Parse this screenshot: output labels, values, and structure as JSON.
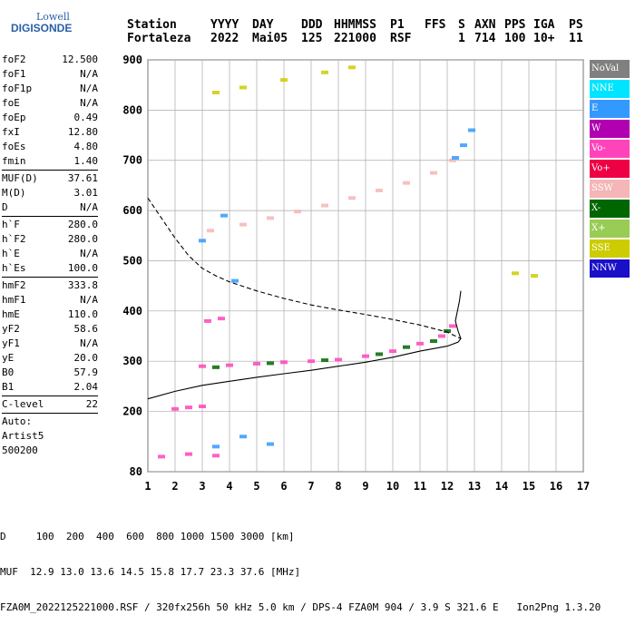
{
  "logo": {
    "line1": "Lowell",
    "line2": "DIGISONDE"
  },
  "header": {
    "labels": [
      "Station",
      "YYYY",
      "DAY",
      "DDD",
      "HHMMSS",
      "P1",
      "FFS",
      "S",
      "AXN",
      "PPS",
      "IGA",
      "PS"
    ],
    "values": [
      "Fortaleza",
      "2022",
      "Mai05",
      "125",
      "221000",
      "RSF",
      "",
      "1",
      "714",
      "100",
      "10+",
      "11"
    ]
  },
  "params": {
    "group1": [
      {
        "k": "foF2",
        "v": "12.500"
      },
      {
        "k": "foF1",
        "v": "N/A"
      },
      {
        "k": "foF1p",
        "v": "N/A"
      },
      {
        "k": "foE",
        "v": "N/A"
      },
      {
        "k": "foEp",
        "v": "0.49"
      },
      {
        "k": "fxI",
        "v": "12.80"
      },
      {
        "k": "foEs",
        "v": "4.80"
      },
      {
        "k": "fmin",
        "v": "1.40"
      }
    ],
    "group2": [
      {
        "k": "MUF(D)",
        "v": "37.61"
      },
      {
        "k": "M(D)",
        "v": "3.01"
      },
      {
        "k": "D",
        "v": "N/A"
      }
    ],
    "group3": [
      {
        "k": "h`F",
        "v": "280.0"
      },
      {
        "k": "h`F2",
        "v": "280.0"
      },
      {
        "k": "h`E",
        "v": "N/A"
      },
      {
        "k": "h`Es",
        "v": "100.0"
      }
    ],
    "group4": [
      {
        "k": "hmF2",
        "v": "333.8"
      },
      {
        "k": "hmF1",
        "v": "N/A"
      },
      {
        "k": "hmE",
        "v": "110.0"
      },
      {
        "k": "yF2",
        "v": "58.6"
      },
      {
        "k": "yF1",
        "v": "N/A"
      },
      {
        "k": "yE",
        "v": "20.0"
      },
      {
        "k": "B0",
        "v": "57.9"
      },
      {
        "k": "B1",
        "v": "2.04"
      }
    ],
    "group5": [
      {
        "k": "C-level",
        "v": "22"
      }
    ],
    "auto": [
      "Auto:",
      "Artist5",
      "500200"
    ]
  },
  "legend": [
    {
      "label": "NoVal",
      "color": "#808080"
    },
    {
      "label": "NNE",
      "color": "#00e5ff"
    },
    {
      "label": "E",
      "color": "#3399ff"
    },
    {
      "label": "W",
      "color": "#b000b0"
    },
    {
      "label": "Vo-",
      "color": "#ff44bb"
    },
    {
      "label": "Vo+",
      "color": "#ee0044"
    },
    {
      "label": "SSW",
      "color": "#f4b6b6"
    },
    {
      "label": "X-",
      "color": "#006600"
    },
    {
      "label": "X+",
      "color": "#99cc55"
    },
    {
      "label": "SSE",
      "color": "#cccc00"
    },
    {
      "label": "NNW",
      "color": "#1a10c8"
    }
  ],
  "footer": {
    "line1": "D     100  200  400  600  800 1000 1500 3000 [km]",
    "line2": "MUF  12.9 13.0 13.6 14.5 15.8 17.7 23.3 37.6 [MHz]",
    "line3": "FZA0M_2022125221000.RSF / 320fx256h 50 kHz 5.0 km / DPS-4 FZA0M 904 / 3.9 S 321.6 E   Ion2Png 1.3.20"
  },
  "chart_data": {
    "type": "scatter",
    "title": "",
    "xlabel": "",
    "ylabel": "",
    "xlim": [
      1,
      17
    ],
    "ylim": [
      80,
      900
    ],
    "x_ticks": [
      1,
      2,
      3,
      4,
      5,
      6,
      7,
      8,
      9,
      10,
      11,
      12,
      13,
      14,
      15,
      16,
      17
    ],
    "y_ticks": [
      80,
      200,
      300,
      400,
      500,
      600,
      700,
      800,
      900
    ],
    "grid": true,
    "legend_position": "right",
    "series": [
      {
        "color": "#ff44bb",
        "points": [
          [
            3.0,
            290
          ],
          [
            4.0,
            292
          ],
          [
            5.0,
            295
          ],
          [
            6.0,
            298
          ],
          [
            7.0,
            300
          ],
          [
            8.0,
            303
          ],
          [
            9.0,
            310
          ],
          [
            10.0,
            320
          ],
          [
            11.0,
            335
          ],
          [
            11.8,
            350
          ],
          [
            12.2,
            370
          ]
        ]
      },
      {
        "color": "#006600",
        "points": [
          [
            3.5,
            288
          ],
          [
            5.5,
            296
          ],
          [
            7.5,
            302
          ],
          [
            9.5,
            314
          ],
          [
            10.5,
            328
          ],
          [
            11.5,
            340
          ],
          [
            12.0,
            360
          ]
        ]
      },
      {
        "color": "#f4b6b6",
        "points": [
          [
            3.3,
            560
          ],
          [
            4.5,
            572
          ],
          [
            5.5,
            585
          ],
          [
            6.5,
            598
          ],
          [
            7.5,
            610
          ],
          [
            8.5,
            625
          ],
          [
            9.5,
            640
          ],
          [
            10.5,
            655
          ],
          [
            11.5,
            675
          ],
          [
            12.2,
            700
          ]
        ]
      },
      {
        "color": "#3399ff",
        "points": [
          [
            12.3,
            705
          ],
          [
            12.6,
            730
          ],
          [
            12.9,
            760
          ],
          [
            3.0,
            540
          ],
          [
            3.8,
            590
          ],
          [
            4.2,
            460
          ],
          [
            3.5,
            130
          ],
          [
            4.5,
            150
          ],
          [
            5.5,
            135
          ]
        ]
      },
      {
        "color": "#cccc00",
        "points": [
          [
            3.5,
            835
          ],
          [
            4.5,
            845
          ],
          [
            6.0,
            860
          ],
          [
            7.5,
            875
          ],
          [
            8.5,
            885
          ],
          [
            14.5,
            475
          ],
          [
            15.2,
            470
          ]
        ]
      },
      {
        "color": "#ff44bb",
        "points": [
          [
            2.0,
            205
          ],
          [
            2.5,
            208
          ],
          [
            3.0,
            210
          ],
          [
            3.2,
            380
          ],
          [
            3.7,
            385
          ]
        ]
      },
      {
        "color": "#ff44bb",
        "points": [
          [
            1.5,
            110
          ],
          [
            2.5,
            115
          ],
          [
            3.5,
            112
          ]
        ]
      }
    ],
    "curves": [
      {
        "name": "",
        "style": "solid",
        "points": [
          [
            1.0,
            225
          ],
          [
            2.0,
            240
          ],
          [
            3.0,
            252
          ],
          [
            4.0,
            260
          ],
          [
            5.0,
            268
          ],
          [
            6.0,
            275
          ],
          [
            7.0,
            282
          ],
          [
            8.0,
            290
          ],
          [
            9.0,
            298
          ],
          [
            10.0,
            308
          ],
          [
            11.0,
            320
          ],
          [
            12.0,
            330
          ],
          [
            12.4,
            338
          ],
          [
            12.5,
            345
          ],
          [
            12.4,
            360
          ],
          [
            12.3,
            380
          ],
          [
            12.45,
            420
          ],
          [
            12.5,
            440
          ]
        ]
      },
      {
        "name": "",
        "style": "dashed",
        "points": [
          [
            1.0,
            625
          ],
          [
            1.5,
            585
          ],
          [
            2.0,
            545
          ],
          [
            2.5,
            510
          ],
          [
            3.0,
            485
          ],
          [
            3.5,
            470
          ],
          [
            4.0,
            458
          ],
          [
            5.0,
            440
          ],
          [
            6.0,
            425
          ],
          [
            7.0,
            412
          ],
          [
            8.0,
            402
          ],
          [
            9.0,
            393
          ],
          [
            10.0,
            383
          ],
          [
            11.0,
            372
          ],
          [
            12.0,
            358
          ],
          [
            12.5,
            345
          ]
        ]
      }
    ]
  }
}
